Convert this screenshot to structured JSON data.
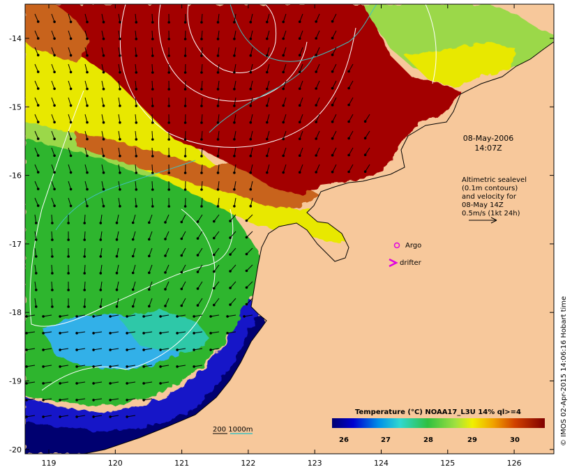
{
  "map": {
    "date": "08-May-2006",
    "time": "14:07Z",
    "legend_lines": [
      "Altimetric sealevel",
      "(0.1m contours)",
      "and velocity for",
      "08-May 14Z",
      "0.5m/s (1kt 24h)"
    ],
    "markers": {
      "argo": "Argo",
      "drifter": "drifter"
    },
    "depth_label": "200  1000m",
    "colorbar": {
      "title": "Temperature (°C) NOAA17_L3U 14% ql>=4",
      "ticks": [
        "26",
        "27",
        "28",
        "29",
        "30"
      ]
    },
    "credit": "© IMOS 02-Apr-2015 14:06:16 Hobart time",
    "x_ticks": [
      "119",
      "120",
      "121",
      "122",
      "123",
      "124",
      "125",
      "126"
    ],
    "y_ticks": [
      "-14",
      "-15",
      "-16",
      "-17",
      "-18",
      "-19",
      "-20"
    ],
    "colors": {
      "land": "#f7c89b",
      "hot": "#a30000",
      "warm_orange": "#c8641a",
      "yellow": "#e8e800",
      "light_green": "#9bd84a",
      "green": "#2fb52f",
      "teal": "#2fc8a8",
      "cyan": "#30b0e8",
      "blue": "#1414c8",
      "navy": "#000070",
      "marker": "#e000e0"
    }
  }
}
